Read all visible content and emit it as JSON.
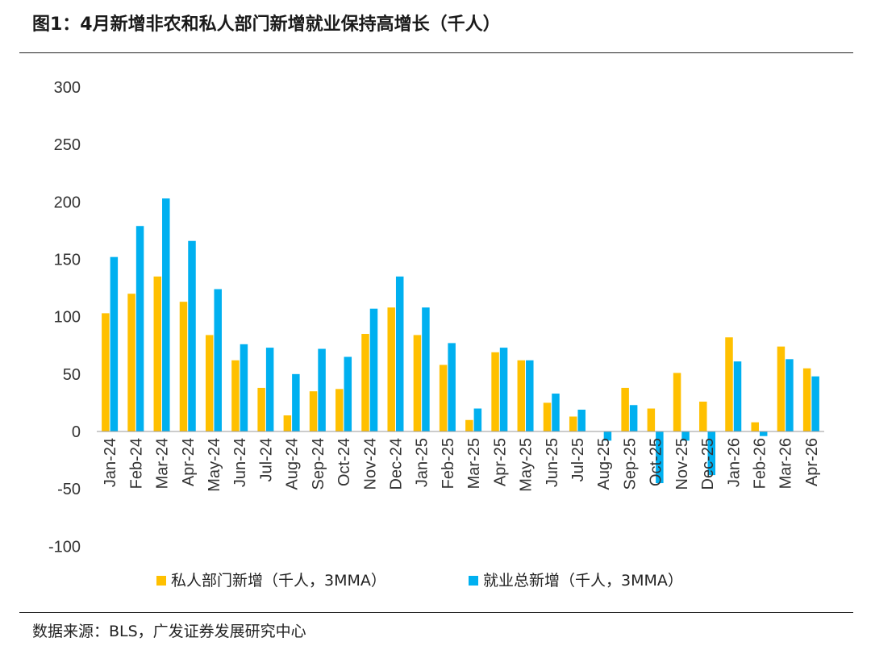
{
  "title": "图1：4月新增非农和私人部门新增就业保持高增长（千人）",
  "source": "数据来源：BLS，广发证券发展研究中心",
  "colors": {
    "private": "#FFC000",
    "total": "#00B0F0"
  },
  "chart_data": {
    "type": "bar",
    "title": "图1：4月新增非农和私人部门新增就业保持高增长（千人）",
    "xlabel": "",
    "ylabel": "",
    "ylim": [
      -100,
      300
    ],
    "yticks": [
      300,
      250,
      200,
      150,
      100,
      50,
      0,
      -50,
      -100
    ],
    "grid": false,
    "legend": "bottom",
    "categories": [
      "Jan-24",
      "Feb-24",
      "Mar-24",
      "Apr-24",
      "May-24",
      "Jun-24",
      "Jul-24",
      "Aug-24",
      "Sep-24",
      "Oct-24",
      "Nov-24",
      "Dec-24",
      "Jan-25",
      "Feb-25",
      "Mar-25",
      "Apr-25",
      "May-25",
      "Jun-25",
      "Jul-25",
      "Aug-25",
      "Sep-25",
      "Oct-25",
      "Nov-25",
      "Dec-25",
      "Jan-26",
      "Feb-26",
      "Mar-26",
      "Apr-26"
    ],
    "series": [
      {
        "name": "私人部门新增（千人，3MMA）",
        "values": [
          103,
          120,
          135,
          113,
          84,
          62,
          38,
          14,
          35,
          37,
          85,
          108,
          84,
          58,
          10,
          69,
          62,
          25,
          13,
          0,
          38,
          20,
          51,
          26,
          82,
          8,
          74,
          55
        ]
      },
      {
        "name": "就业总新增（千人，3MMA）",
        "values": [
          152,
          179,
          203,
          166,
          124,
          76,
          73,
          50,
          72,
          65,
          107,
          135,
          108,
          77,
          20,
          73,
          62,
          33,
          19,
          -8,
          23,
          -45,
          -8,
          -38,
          61,
          -4,
          63,
          48
        ]
      }
    ]
  }
}
